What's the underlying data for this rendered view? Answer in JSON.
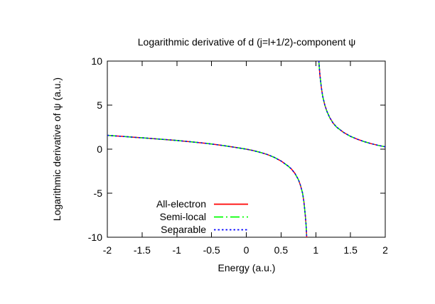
{
  "chart_data": {
    "type": "line",
    "title": "Logarithmic derivative of d (j=l+1/2)-component ψ",
    "xlabel": "Energy (a.u.)",
    "ylabel": "Logarithmic derivative of ψ (a.u.)",
    "xlim": [
      -2,
      2
    ],
    "ylim": [
      -10,
      10
    ],
    "grid": false,
    "frame_color": "#000000",
    "background_color": "#ffffff",
    "xticks": {
      "values": [
        -2,
        -1.5,
        -1,
        -0.5,
        0,
        0.5,
        1,
        1.5,
        2
      ],
      "labels": [
        "-2",
        "-1.5",
        "-1",
        "-0.5",
        "0",
        "0.5",
        "1",
        "1.5",
        "2"
      ]
    },
    "yticks": {
      "values": [
        10,
        5,
        0,
        -5,
        -10
      ],
      "labels": [
        "10",
        "5",
        "0",
        "-5",
        "-10"
      ]
    },
    "legend": {
      "position": "inside bottom-left",
      "entries": [
        "All-electron",
        "Semi-local",
        "Separable"
      ]
    },
    "note": "All three curves coincide within line width; curve has a vertical asymptote near E = 0.95 a.u. Branch samples below are shared by every series.",
    "curve_branches": {
      "left": {
        "x": [
          -2.0,
          -1.9,
          -1.8,
          -1.7,
          -1.6,
          -1.5,
          -1.4,
          -1.3,
          -1.2,
          -1.1,
          -1.0,
          -0.9,
          -0.8,
          -0.7,
          -0.6,
          -0.5,
          -0.4,
          -0.3,
          -0.2,
          -0.1,
          0.0,
          0.1,
          0.2,
          0.3,
          0.4,
          0.5,
          0.6,
          0.65,
          0.7,
          0.75,
          0.78,
          0.81,
          0.83,
          0.85,
          0.86,
          0.87
        ],
        "y": [
          1.57,
          1.51,
          1.46,
          1.4,
          1.34,
          1.29,
          1.23,
          1.17,
          1.11,
          1.05,
          0.98,
          0.91,
          0.84,
          0.76,
          0.68,
          0.58,
          0.48,
          0.37,
          0.25,
          0.13,
          0.0,
          -0.16,
          -0.36,
          -0.6,
          -0.92,
          -1.35,
          -1.9,
          -2.25,
          -2.75,
          -3.45,
          -4.1,
          -5.0,
          -6.0,
          -7.6,
          -8.6,
          -10.0
        ]
      },
      "right": {
        "x": [
          1.045,
          1.05,
          1.06,
          1.08,
          1.1,
          1.13,
          1.16,
          1.2,
          1.25,
          1.3,
          1.4,
          1.5,
          1.6,
          1.7,
          1.8,
          1.9,
          2.0
        ],
        "y": [
          10.0,
          9.4,
          8.4,
          7.0,
          6.0,
          5.0,
          4.3,
          3.6,
          2.95,
          2.5,
          1.9,
          1.45,
          1.12,
          0.85,
          0.62,
          0.43,
          0.27
        ]
      }
    },
    "series": [
      {
        "name": "All-electron",
        "color": "#ff0000",
        "dash": "solid"
      },
      {
        "name": "Semi-local",
        "color": "#00ff00",
        "dash": "dash-dot"
      },
      {
        "name": "Separable",
        "color": "#0000ff",
        "dash": "dotted"
      }
    ]
  }
}
